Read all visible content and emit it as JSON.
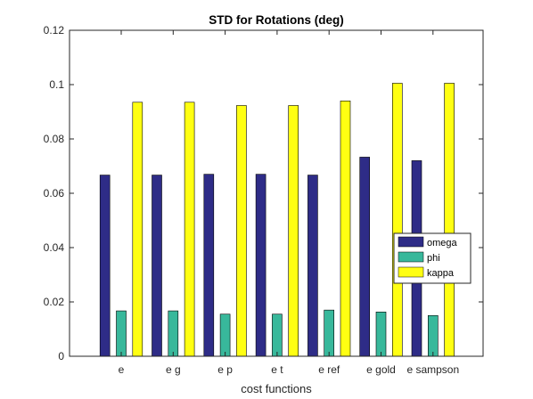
{
  "chart_data": {
    "type": "bar",
    "title": "STD for Rotations (deg)",
    "xlabel": "cost functions",
    "ylabel": "",
    "ylim": [
      0,
      0.12
    ],
    "yticks": [
      "0",
      "0.02",
      "0.04",
      "0.06",
      "0.08",
      "0.1",
      "0.12"
    ],
    "categories": [
      "e",
      "e g",
      "e p",
      "e t",
      "e ref",
      "e gold",
      "e sampson"
    ],
    "series": [
      {
        "name": "omega",
        "color": "#2e2c87",
        "values": [
          0.0667,
          0.0667,
          0.067,
          0.067,
          0.0667,
          0.0733,
          0.072
        ]
      },
      {
        "name": "phi",
        "color": "#38b89b",
        "values": [
          0.0167,
          0.0167,
          0.0155,
          0.0155,
          0.017,
          0.0163,
          0.015
        ]
      },
      {
        "name": "kappa",
        "color": "#ffff12",
        "values": [
          0.0935,
          0.0935,
          0.0923,
          0.0923,
          0.094,
          0.1005,
          0.1005
        ]
      }
    ],
    "grid": false,
    "legend_position": "inside-right"
  }
}
